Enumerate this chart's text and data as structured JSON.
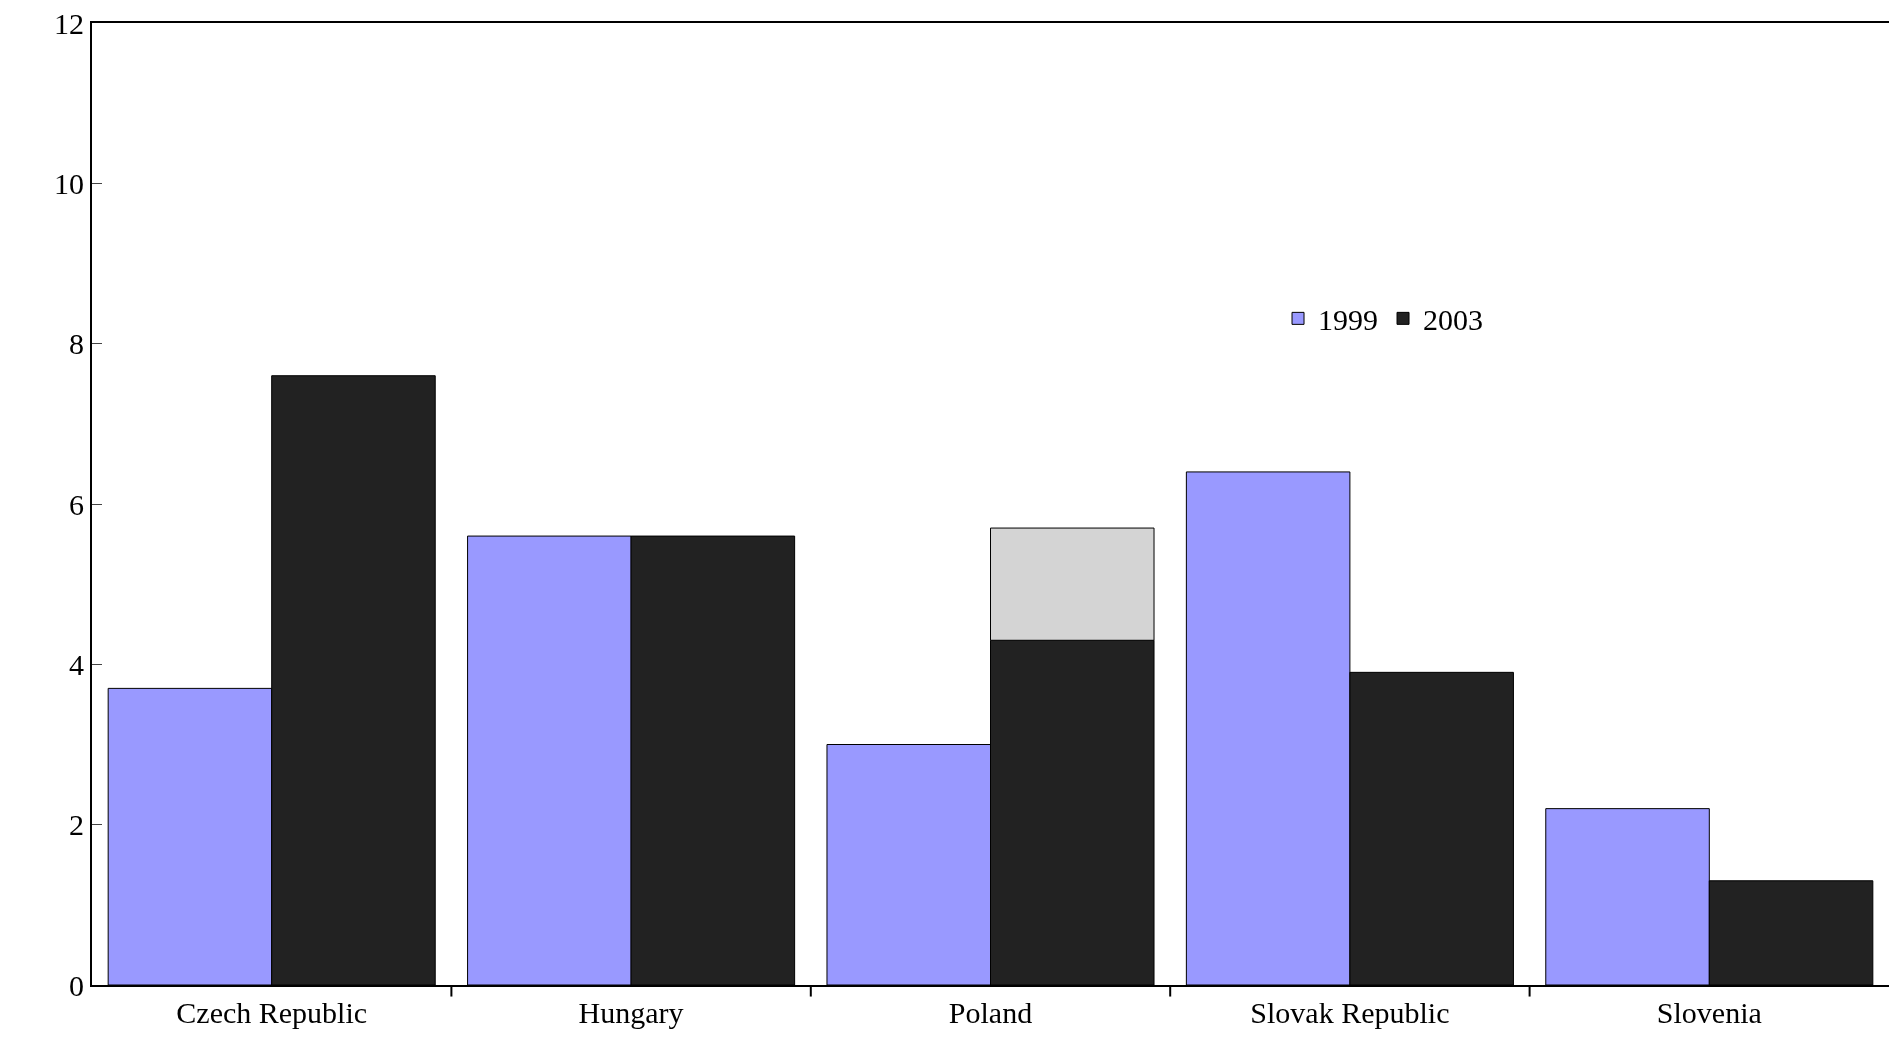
{
  "chart_data": {
    "type": "bar",
    "categories": [
      "Czech Republic",
      "Hungary",
      "Poland",
      "Slovak Republic",
      "Slovenia"
    ],
    "series": [
      {
        "name": "1999",
        "color": "#9999ff",
        "values": [
          3.7,
          5.6,
          3.0,
          6.4,
          2.2
        ]
      },
      {
        "name": "2003",
        "color": "#222222",
        "values": [
          7.6,
          5.6,
          4.3,
          3.9,
          1.3
        ]
      },
      {
        "color": "#d4d4d4",
        "values": [
          null,
          null,
          1.4,
          null,
          null
        ],
        "base": [
          null,
          null,
          4.3,
          null,
          null
        ]
      }
    ],
    "ylim": [
      0,
      12
    ],
    "yticks": [
      0,
      2,
      4,
      6,
      8,
      10,
      12
    ],
    "grid": false,
    "legend": "top right"
  }
}
